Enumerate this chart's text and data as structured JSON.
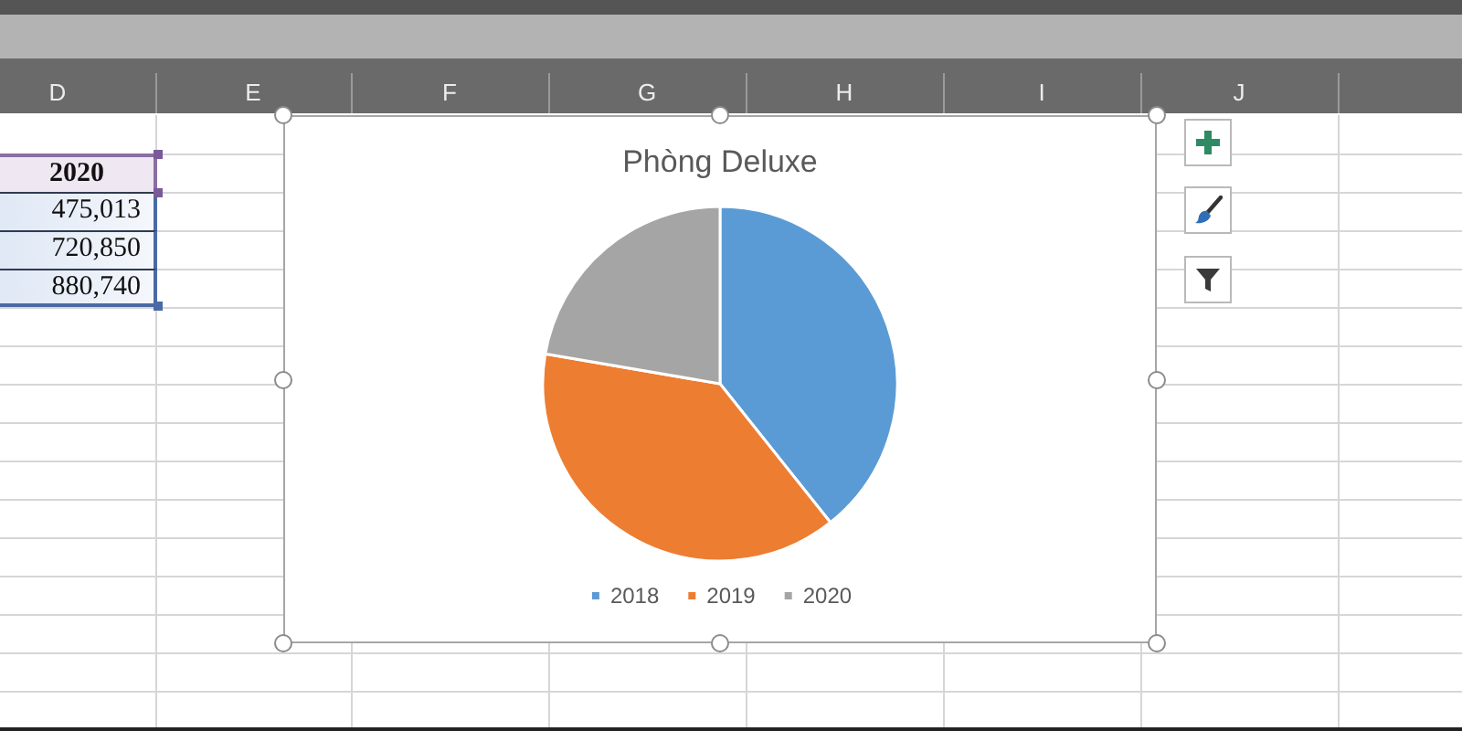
{
  "chart_data": {
    "type": "pie",
    "title": "Phòng Deluxe",
    "categories": [
      "2018",
      "2019",
      "2020"
    ],
    "values": [
      39.3,
      38.4,
      22.3
    ],
    "colors": [
      "#5b9bd5",
      "#ed7d31",
      "#a5a5a5"
    ],
    "legend": "bottom",
    "annotations": [
      "D",
      "E",
      "F",
      "G",
      "H",
      "I",
      "J",
      "2020",
      "475,013",
      "720,850",
      "880,740"
    ]
  }
}
